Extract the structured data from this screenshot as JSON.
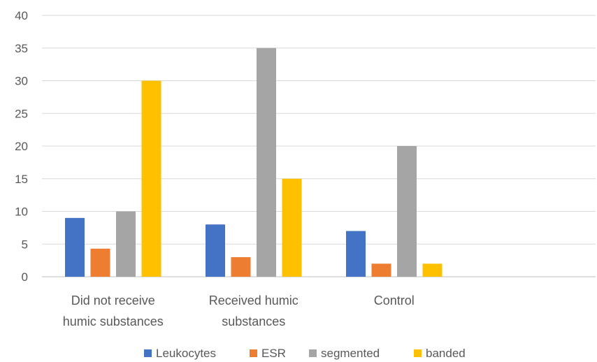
{
  "chart_data": {
    "type": "bar",
    "title": "",
    "xlabel": "",
    "ylabel": "",
    "ylim": [
      0,
      40
    ],
    "yticks": [
      "0",
      "5",
      "10",
      "15",
      "20",
      "25",
      "30",
      "35",
      "40"
    ],
    "grid": true,
    "legend_position": "bottom",
    "categories": [
      [
        "Did not receive",
        "humic substances"
      ],
      [
        "Received humic",
        "substances"
      ],
      [
        "Control"
      ]
    ],
    "series": [
      {
        "name": "Leukocytes",
        "color": "#4472C4",
        "values": [
          9,
          8,
          7
        ]
      },
      {
        "name": "ESR",
        "color": "#ED7D31",
        "values": [
          4.3,
          3,
          2
        ]
      },
      {
        "name": "segmented",
        "color": "#A5A5A5",
        "values": [
          10,
          35,
          20
        ]
      },
      {
        "name": "banded",
        "color": "#FFC000",
        "values": [
          30,
          15,
          2
        ]
      }
    ]
  }
}
